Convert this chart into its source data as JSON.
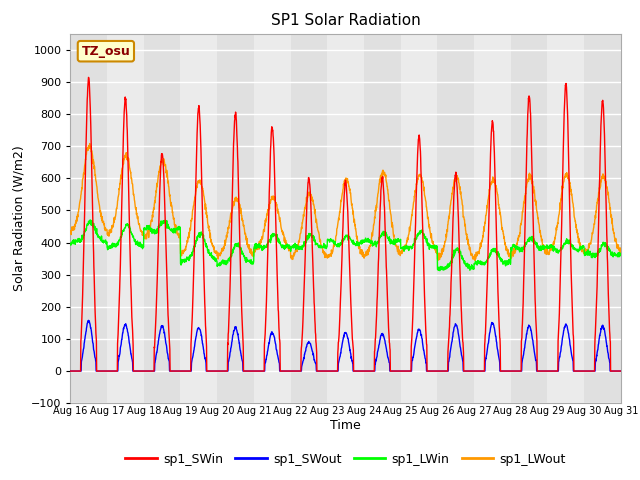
{
  "title": "SP1 Solar Radiation",
  "xlabel": "Time",
  "ylabel": "Solar Radiation (W/m2)",
  "ylim": [
    -100,
    1050
  ],
  "yticks": [
    -100,
    0,
    100,
    200,
    300,
    400,
    500,
    600,
    700,
    800,
    900,
    1000
  ],
  "x_labels": [
    "Aug 16",
    "Aug 17",
    "Aug 18",
    "Aug 19",
    "Aug 20",
    "Aug 21",
    "Aug 22",
    "Aug 23",
    "Aug 24",
    "Aug 25",
    "Aug 26",
    "Aug 27",
    "Aug 28",
    "Aug 29",
    "Aug 30",
    "Aug 31"
  ],
  "tz_label": "TZ_osu",
  "colors": {
    "sp1_SWin": "#ff0000",
    "sp1_SWout": "#0000ff",
    "sp1_LWin": "#00ff00",
    "sp1_LWout": "#ff9900"
  },
  "background_color": "#e8e8e8",
  "band_color_light": "#f0f0f0",
  "band_color_dark": "#d8d8d8",
  "grid_color": "#ffffff",
  "n_days": 15,
  "n_points_per_day": 144,
  "sw_peaks": [
    910,
    850,
    680,
    820,
    800,
    760,
    600,
    590,
    600,
    730,
    615,
    775,
    855,
    890,
    840
  ],
  "sw_out_peaks": [
    155,
    145,
    140,
    135,
    135,
    120,
    90,
    120,
    115,
    130,
    145,
    150,
    140,
    145,
    140
  ],
  "lw_in_base": [
    390,
    375,
    440,
    330,
    325,
    380,
    380,
    400,
    400,
    375,
    310,
    330,
    380,
    380,
    360
  ],
  "lw_in_peaks": [
    450,
    440,
    450,
    415,
    380,
    410,
    410,
    405,
    415,
    420,
    365,
    365,
    400,
    390,
    380
  ],
  "lw_out_base": [
    430,
    420,
    410,
    360,
    355,
    375,
    350,
    350,
    355,
    365,
    345,
    350,
    360,
    365,
    365
  ],
  "lw_out_peaks": [
    700,
    670,
    655,
    590,
    535,
    540,
    550,
    595,
    620,
    610,
    600,
    595,
    605,
    610,
    605
  ]
}
